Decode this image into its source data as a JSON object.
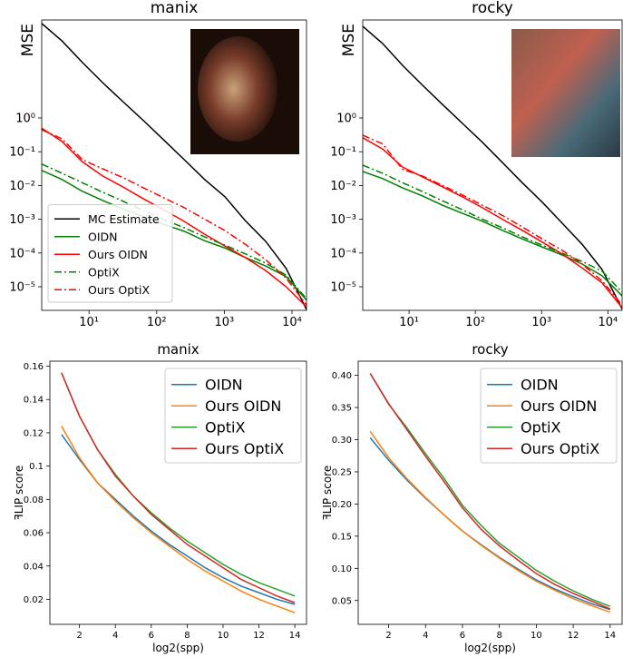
{
  "chart_data": [
    {
      "type": "line",
      "title": "manix",
      "ylabel": "MSE",
      "xlog": true,
      "ylog": true,
      "x": [
        2,
        4,
        8,
        16,
        32,
        64,
        128,
        256,
        512,
        1024,
        2048,
        4096,
        8192,
        16384
      ],
      "xlim": [
        2,
        16384
      ],
      "ylim": [
        2e-06,
        800
      ],
      "xticks": [
        {
          "value": 10,
          "label": "10¹"
        },
        {
          "value": 100,
          "label": "10²"
        },
        {
          "value": 1000,
          "label": "10³"
        },
        {
          "value": 10000,
          "label": "10⁴"
        }
      ],
      "yticks": [
        {
          "value": 1e-05,
          "label": "10⁻⁵"
        },
        {
          "value": 0.0001,
          "label": "10⁻⁴"
        },
        {
          "value": 0.001,
          "label": "10⁻³"
        },
        {
          "value": 0.01,
          "label": "10⁻²"
        },
        {
          "value": 0.1,
          "label": "10⁻¹"
        },
        {
          "value": 1,
          "label": "10⁰"
        }
      ],
      "legend": "lower left",
      "series": [
        {
          "name": "MC Estimate",
          "color": "#000000",
          "linestyle": "solid",
          "values": [
            630,
            190,
            44,
            11,
            3.0,
            0.83,
            0.22,
            0.058,
            0.015,
            0.0046,
            0.0009,
            0.00022,
            3.5e-05,
            2.1e-06
          ]
        },
        {
          "name": "OIDN",
          "color": "#008000",
          "linestyle": "solid",
          "values": [
            0.028,
            0.015,
            0.0067,
            0.0036,
            0.002,
            0.0012,
            0.0007,
            0.00044,
            0.00023,
            0.00014,
            7.3e-05,
            4.1e-05,
            2e-05,
            4e-06
          ]
        },
        {
          "name": "Ours OIDN",
          "color": "#ff0000",
          "linestyle": "solid",
          "values": [
            0.5,
            0.2,
            0.05,
            0.019,
            0.009,
            0.004,
            0.0019,
            0.00086,
            0.00036,
            0.00016,
            7.3e-05,
            3e-05,
            1e-05,
            2.5e-06
          ]
        },
        {
          "name": "OptiX",
          "color": "#008000",
          "linestyle": "dashdot",
          "values": [
            0.043,
            0.023,
            0.012,
            0.0063,
            0.0034,
            0.0018,
            0.00097,
            0.00056,
            0.0003,
            0.00017,
            9.4e-05,
            5e-05,
            2.2e-05,
            4.4e-06
          ]
        },
        {
          "name": "Ours OptiX",
          "color": "#ff0000",
          "linestyle": "dashdot",
          "values": [
            0.45,
            0.24,
            0.058,
            0.031,
            0.017,
            0.0085,
            0.0043,
            0.0022,
            0.001,
            0.00046,
            0.00018,
            6.3e-05,
            1.8e-05,
            2.9e-06
          ]
        }
      ]
    },
    {
      "type": "line",
      "title": "rocky",
      "ylabel": "MSE",
      "xlog": true,
      "ylog": true,
      "x": [
        2,
        4,
        8,
        16,
        32,
        64,
        128,
        256,
        512,
        1024,
        2048,
        4096,
        8192,
        16384
      ],
      "xlim": [
        2,
        16384
      ],
      "ylim": [
        2e-06,
        800
      ],
      "xticks": [
        {
          "value": 10,
          "label": "10¹"
        },
        {
          "value": 100,
          "label": "10²"
        },
        {
          "value": 1000,
          "label": "10³"
        },
        {
          "value": 10000,
          "label": "10⁴"
        }
      ],
      "yticks": [
        {
          "value": 1e-05,
          "label": "10⁻⁵"
        },
        {
          "value": 0.0001,
          "label": "10⁻⁴"
        },
        {
          "value": 0.001,
          "label": "10⁻³"
        },
        {
          "value": 0.01,
          "label": "10⁻²"
        },
        {
          "value": 0.1,
          "label": "10⁻¹"
        },
        {
          "value": 1,
          "label": "10⁰"
        }
      ],
      "series": [
        {
          "color": "#000000",
          "linestyle": "solid",
          "values": [
            520,
            160,
            36,
            9.3,
            2.5,
            0.69,
            0.19,
            0.048,
            0.012,
            0.0032,
            0.00076,
            0.00018,
            3.2e-05,
            2.2e-06
          ]
        },
        {
          "color": "#008000",
          "linestyle": "solid",
          "values": [
            0.026,
            0.016,
            0.0085,
            0.0049,
            0.0026,
            0.0015,
            0.00087,
            0.00047,
            0.00026,
            0.00015,
            8.7e-05,
            4.7e-05,
            2.1e-05,
            5.4e-06
          ]
        },
        {
          "color": "#ff0000",
          "linestyle": "solid",
          "values": [
            0.26,
            0.12,
            0.035,
            0.018,
            0.0091,
            0.0046,
            0.0022,
            0.001,
            0.00047,
            0.00021,
            9.3e-05,
            3.6e-05,
            1.3e-05,
            2.4e-06
          ]
        },
        {
          "color": "#008000",
          "linestyle": "dashdot",
          "values": [
            0.04,
            0.023,
            0.012,
            0.0066,
            0.0035,
            0.0019,
            0.001,
            0.00056,
            0.0003,
            0.00017,
            9.8e-05,
            5.6e-05,
            2.9e-05,
            6.9e-06
          ]
        },
        {
          "color": "#ff0000",
          "linestyle": "dashdot",
          "values": [
            0.31,
            0.17,
            0.03,
            0.019,
            0.01,
            0.0052,
            0.0026,
            0.0013,
            0.00059,
            0.00026,
            0.00012,
            4.7e-05,
            1.5e-05,
            2.9e-06
          ]
        }
      ]
    },
    {
      "type": "line",
      "title": "manix",
      "xlabel": "log2(spp)",
      "ylabel": "ꟻLIP score",
      "x": [
        1,
        2,
        3,
        4,
        5,
        6,
        7,
        8,
        9,
        10,
        11,
        12,
        13,
        14
      ],
      "xlim": [
        0.35,
        14.65
      ],
      "ylim": [
        0.005,
        0.163
      ],
      "xticks": [
        2,
        4,
        6,
        8,
        10,
        12,
        14
      ],
      "yticks": [
        0.02,
        0.04,
        0.06,
        0.08,
        0.1,
        0.12,
        0.14,
        0.16
      ],
      "legend": "upper right",
      "series": [
        {
          "name": "OIDN",
          "color": "#1f77b4",
          "linestyle": "solid",
          "values": [
            0.119,
            0.104,
            0.09,
            0.08,
            0.07,
            0.061,
            0.053,
            0.046,
            0.039,
            0.033,
            0.028,
            0.024,
            0.02,
            0.017
          ]
        },
        {
          "name": "Ours OIDN",
          "color": "#ff7f0e",
          "linestyle": "solid",
          "values": [
            0.124,
            0.105,
            0.09,
            0.079,
            0.069,
            0.06,
            0.052,
            0.044,
            0.037,
            0.031,
            0.025,
            0.02,
            0.016,
            0.012
          ]
        },
        {
          "name": "OptiX",
          "color": "#2ca02c",
          "linestyle": "solid",
          "values": [
            0.156,
            0.13,
            0.11,
            0.095,
            0.082,
            0.072,
            0.063,
            0.055,
            0.048,
            0.041,
            0.035,
            0.03,
            0.026,
            0.022
          ]
        },
        {
          "name": "Ours OptiX",
          "color": "#d62728",
          "linestyle": "solid",
          "values": [
            0.156,
            0.13,
            0.11,
            0.094,
            0.082,
            0.071,
            0.062,
            0.053,
            0.046,
            0.039,
            0.032,
            0.027,
            0.022,
            0.018
          ]
        }
      ]
    },
    {
      "type": "line",
      "title": "rocky",
      "xlabel": "log2(spp)",
      "ylabel": "ꟻLIP score",
      "x": [
        1,
        2,
        3,
        4,
        5,
        6,
        7,
        8,
        9,
        10,
        11,
        12,
        13,
        14
      ],
      "xlim": [
        0.35,
        14.65
      ],
      "ylim": [
        0.013,
        0.422
      ],
      "xticks": [
        2,
        4,
        6,
        8,
        10,
        12,
        14
      ],
      "yticks": [
        {
          "value": 0.05,
          "label": "0.05"
        },
        {
          "value": 0.1,
          "label": "0.10"
        },
        {
          "value": 0.15,
          "label": "0.15"
        },
        {
          "value": 0.2,
          "label": "0.20"
        },
        {
          "value": 0.25,
          "label": "0.25"
        },
        {
          "value": 0.3,
          "label": "0.30"
        },
        {
          "value": 0.35,
          "label": "0.35"
        },
        {
          "value": 0.4,
          "label": "0.40"
        }
      ],
      "legend": "upper right",
      "series": [
        {
          "name": "OIDN",
          "color": "#1f77b4",
          "linestyle": "solid",
          "values": [
            0.303,
            0.268,
            0.237,
            0.209,
            0.183,
            0.158,
            0.137,
            0.117,
            0.099,
            0.082,
            0.068,
            0.056,
            0.045,
            0.036
          ]
        },
        {
          "name": "Ours OIDN",
          "color": "#ff7f0e",
          "linestyle": "solid",
          "values": [
            0.313,
            0.272,
            0.239,
            0.21,
            0.183,
            0.158,
            0.136,
            0.116,
            0.097,
            0.08,
            0.066,
            0.053,
            0.042,
            0.032
          ]
        },
        {
          "name": "OptiX",
          "color": "#2ca02c",
          "linestyle": "solid",
          "values": [
            0.403,
            0.355,
            0.318,
            0.278,
            0.24,
            0.198,
            0.167,
            0.139,
            0.118,
            0.097,
            0.08,
            0.065,
            0.052,
            0.041
          ]
        },
        {
          "name": "Ours OptiX",
          "color": "#d62728",
          "linestyle": "solid",
          "values": [
            0.403,
            0.356,
            0.315,
            0.274,
            0.235,
            0.194,
            0.161,
            0.135,
            0.113,
            0.092,
            0.075,
            0.061,
            0.049,
            0.037
          ]
        }
      ]
    }
  ]
}
